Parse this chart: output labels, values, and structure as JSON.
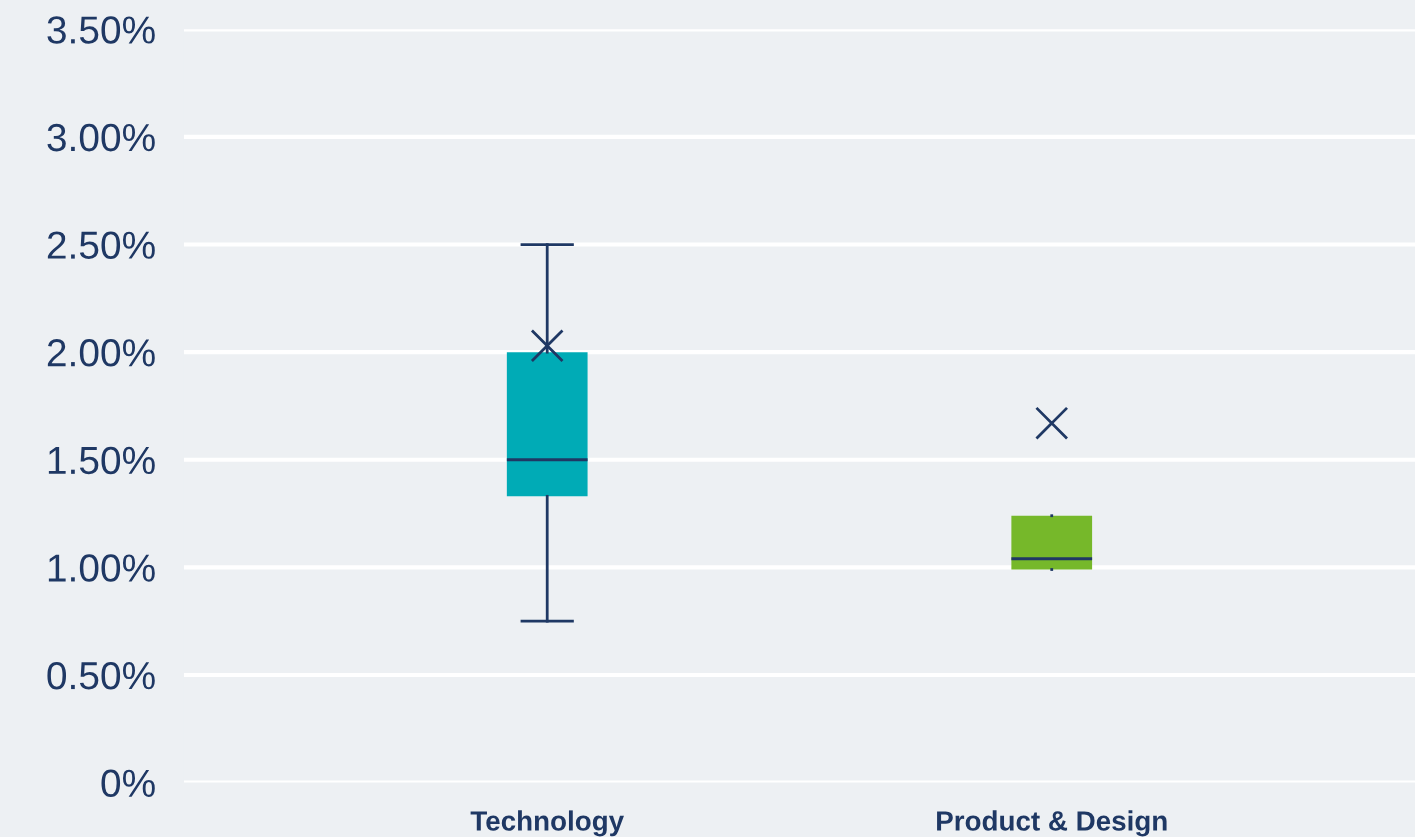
{
  "chart_data": {
    "type": "box",
    "categories": [
      "Technology",
      "Product & Design"
    ],
    "boxes": [
      {
        "low": 0.75,
        "q1": 1.33,
        "median": 1.5,
        "q3": 2.0,
        "high": 2.5,
        "mean": 2.03
      },
      {
        "low": 0.99,
        "q1": 0.99,
        "median": 1.04,
        "q3": 1.24,
        "high": 1.24,
        "mean": 1.67
      }
    ],
    "colors": [
      "#00abb6",
      "#76b82a"
    ],
    "ylim": [
      0,
      3.5
    ],
    "yticks": [
      {
        "value": 0,
        "label": "0%"
      },
      {
        "value": 0.5,
        "label": "0.50%"
      },
      {
        "value": 1,
        "label": "1.00%"
      },
      {
        "value": 1.5,
        "label": "1.50%"
      },
      {
        "value": 2,
        "label": "2.00%"
      },
      {
        "value": 2.5,
        "label": "2.50%"
      },
      {
        "value": 3,
        "label": "3.00%"
      },
      {
        "value": 3.5,
        "label": "3.50%"
      }
    ],
    "grid": "y",
    "marker": "cross"
  }
}
